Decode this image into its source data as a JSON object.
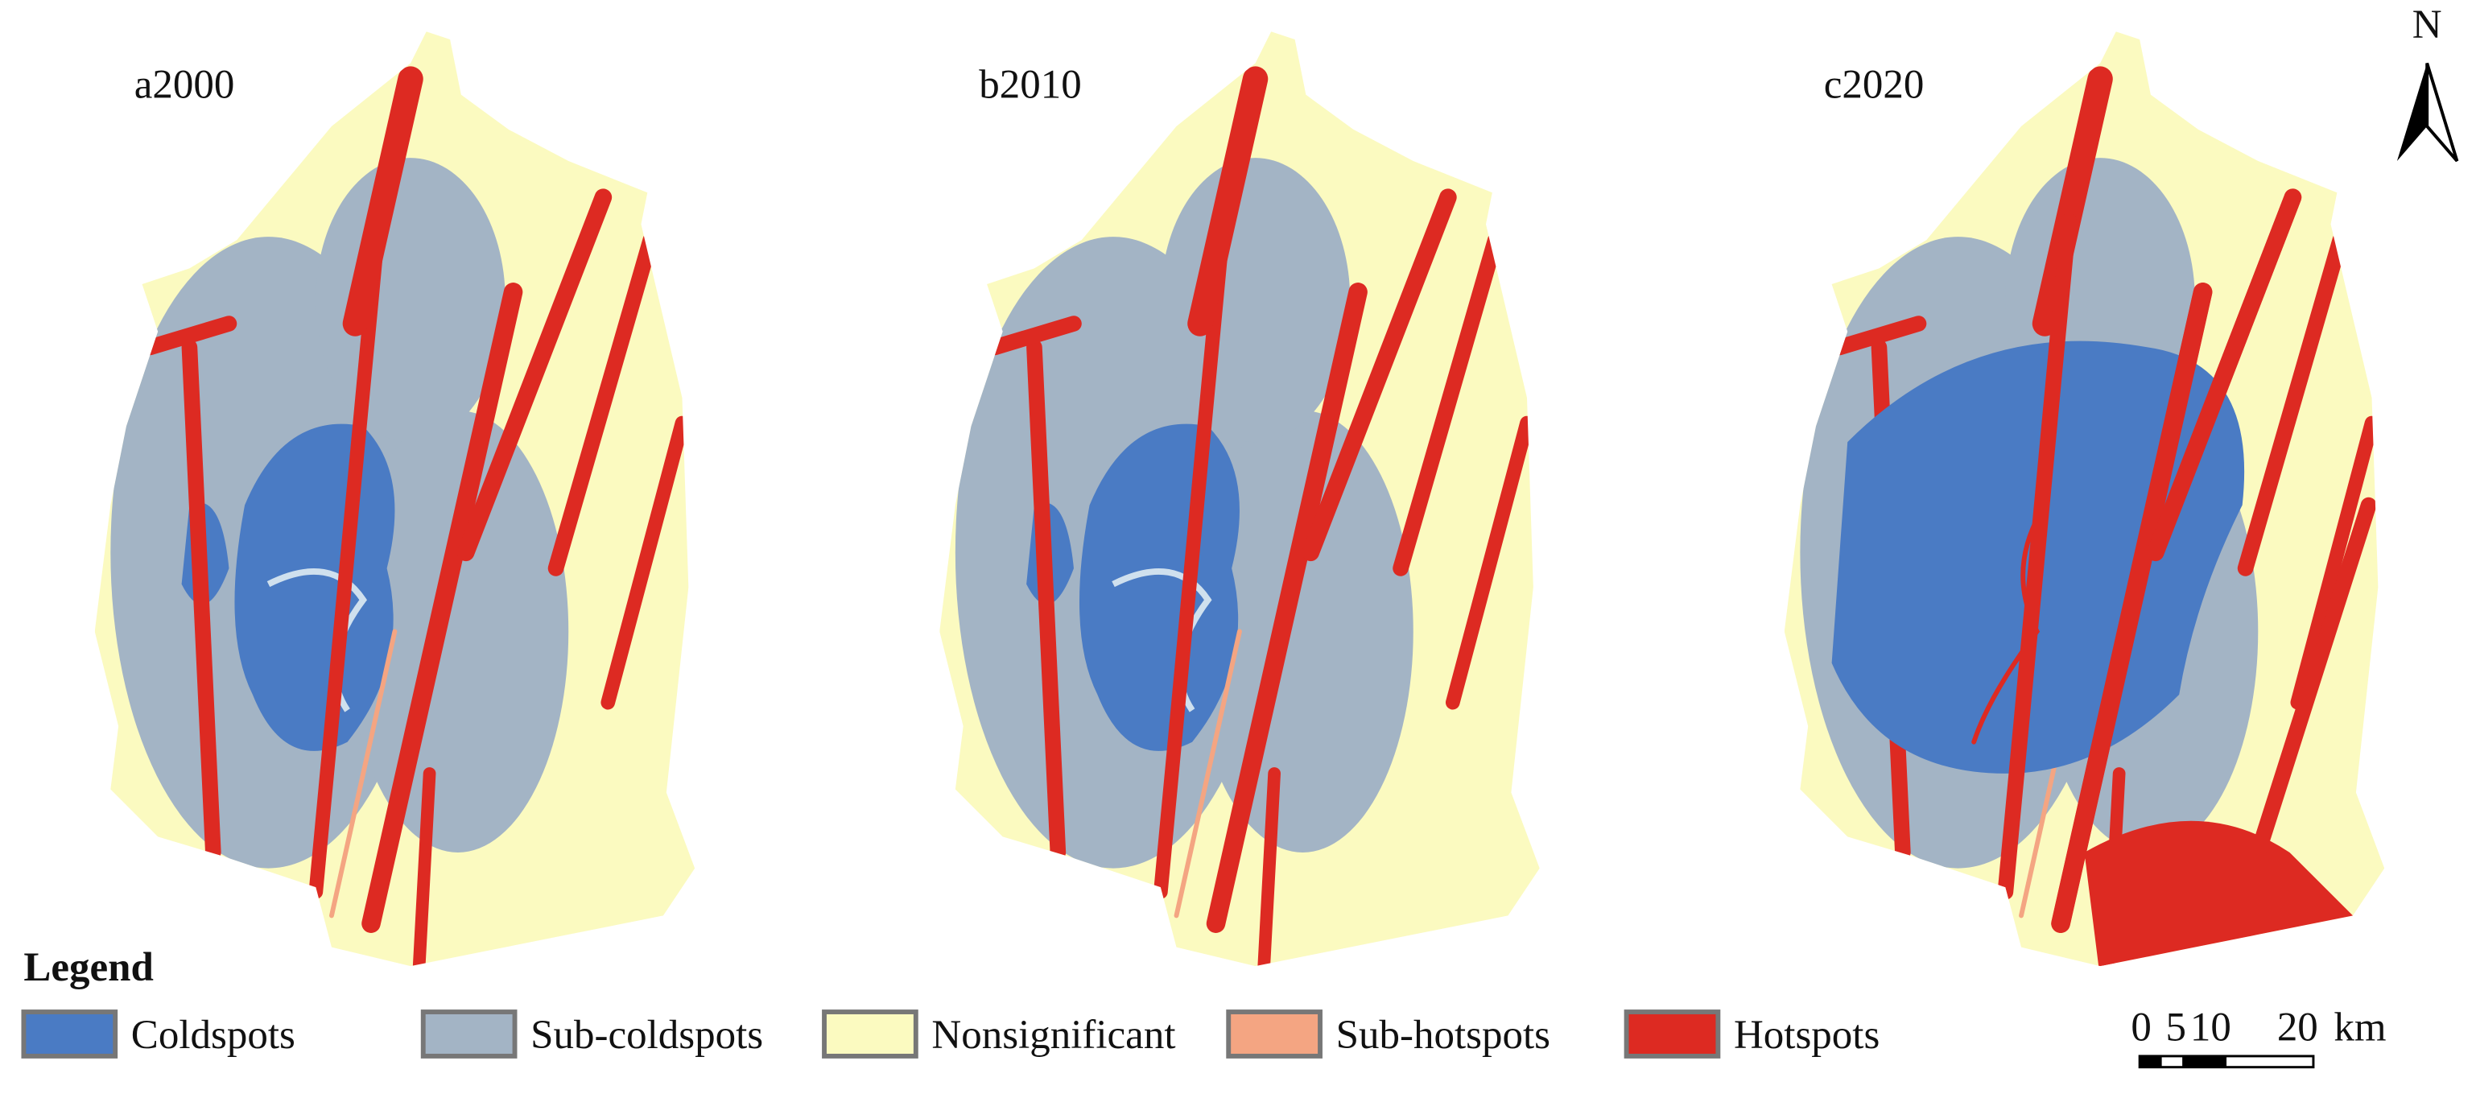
{
  "panels": [
    {
      "label": "a2000"
    },
    {
      "label": "b2010"
    },
    {
      "label": "c2020"
    }
  ],
  "north_arrow": {
    "label": "N"
  },
  "legend": {
    "title": "Legend",
    "items": [
      {
        "label": "Coldspots",
        "color": "#4a7bc4"
      },
      {
        "label": "Sub-coldspots",
        "color": "#a3b4c5"
      },
      {
        "label": "Nonsignificant",
        "color": "#fbfac0"
      },
      {
        "label": "Sub-hotspots",
        "color": "#f4a582"
      },
      {
        "label": "Hotspots",
        "color": "#dd2a22"
      }
    ]
  },
  "scale_bar": {
    "labels": [
      "0",
      "5",
      "10",
      "20"
    ],
    "unit": "km"
  }
}
